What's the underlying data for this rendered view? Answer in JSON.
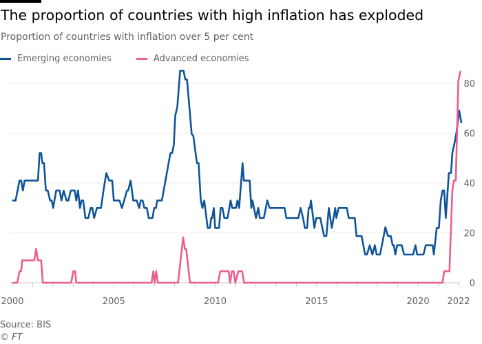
{
  "chart_data": {
    "type": "line",
    "title": "The proportion of countries with high inflation has exploded",
    "subtitle": "Proportion of countries with inflation over 5 per cent",
    "xlabel": "",
    "ylabel": "",
    "xlim": [
      2000,
      2022.2
    ],
    "ylim": [
      0,
      87
    ],
    "grid": true,
    "legend_position": "top-left",
    "x_ticks": [
      2000,
      2005,
      2010,
      2015,
      2020,
      2022
    ],
    "x_tick_labels": [
      "2000",
      "2005",
      "2010",
      "2015",
      "2020",
      "2022"
    ],
    "y_ticks": [
      0,
      20,
      40,
      60,
      80
    ],
    "y_tick_labels": [
      "0",
      "20",
      "40",
      "60",
      "80"
    ],
    "series": [
      {
        "name": "Emerging economies",
        "color": "#0f5499",
        "points": [
          [
            2000.0,
            33
          ],
          [
            2000.16,
            33
          ],
          [
            2000.35,
            41
          ],
          [
            2000.43,
            41
          ],
          [
            2000.52,
            37
          ],
          [
            2000.6,
            41
          ],
          [
            2001.26,
            41
          ],
          [
            2001.34,
            52
          ],
          [
            2001.42,
            52
          ],
          [
            2001.48,
            48
          ],
          [
            2001.56,
            48
          ],
          [
            2001.65,
            37
          ],
          [
            2001.74,
            37
          ],
          [
            2001.86,
            33
          ],
          [
            2001.94,
            33
          ],
          [
            2002.01,
            30
          ],
          [
            2002.16,
            37
          ],
          [
            2002.33,
            37
          ],
          [
            2002.42,
            33
          ],
          [
            2002.53,
            37
          ],
          [
            2002.67,
            33
          ],
          [
            2002.76,
            33
          ],
          [
            2002.88,
            37
          ],
          [
            2003.07,
            37
          ],
          [
            2003.15,
            33
          ],
          [
            2003.24,
            37
          ],
          [
            2003.33,
            30
          ],
          [
            2003.41,
            33
          ],
          [
            2003.49,
            33
          ],
          [
            2003.6,
            26
          ],
          [
            2003.74,
            26
          ],
          [
            2003.86,
            30
          ],
          [
            2003.94,
            30
          ],
          [
            2004.03,
            26
          ],
          [
            2004.17,
            30
          ],
          [
            2004.37,
            30
          ],
          [
            2004.49,
            37
          ],
          [
            2004.63,
            44
          ],
          [
            2004.77,
            41
          ],
          [
            2004.92,
            41
          ],
          [
            2005.0,
            33
          ],
          [
            2005.28,
            33
          ],
          [
            2005.4,
            30
          ],
          [
            2005.51,
            33
          ],
          [
            2005.65,
            37
          ],
          [
            2005.71,
            37
          ],
          [
            2005.83,
            41
          ],
          [
            2005.96,
            33
          ],
          [
            2006.13,
            33
          ],
          [
            2006.25,
            30
          ],
          [
            2006.33,
            33
          ],
          [
            2006.42,
            33
          ],
          [
            2006.51,
            30
          ],
          [
            2006.63,
            30
          ],
          [
            2006.72,
            26
          ],
          [
            2006.91,
            26
          ],
          [
            2006.99,
            30
          ],
          [
            2007.08,
            30
          ],
          [
            2007.14,
            33
          ],
          [
            2007.37,
            33
          ],
          [
            2007.79,
            52
          ],
          [
            2007.88,
            52
          ],
          [
            2007.96,
            55.5
          ],
          [
            2008.03,
            67
          ],
          [
            2008.13,
            70.5
          ],
          [
            2008.27,
            85
          ],
          [
            2008.44,
            85
          ],
          [
            2008.53,
            81.5
          ],
          [
            2008.61,
            81.5
          ],
          [
            2008.84,
            59.6
          ],
          [
            2008.92,
            59
          ],
          [
            2009.1,
            48
          ],
          [
            2009.18,
            48
          ],
          [
            2009.29,
            33
          ],
          [
            2009.37,
            30
          ],
          [
            2009.46,
            33
          ],
          [
            2009.63,
            22
          ],
          [
            2009.74,
            22
          ],
          [
            2009.8,
            26
          ],
          [
            2009.85,
            26
          ],
          [
            2009.93,
            30
          ],
          [
            2010.0,
            22
          ],
          [
            2010.19,
            22
          ],
          [
            2010.27,
            30
          ],
          [
            2010.36,
            30
          ],
          [
            2010.45,
            26
          ],
          [
            2010.61,
            26
          ],
          [
            2010.76,
            33
          ],
          [
            2010.84,
            30
          ],
          [
            2011.02,
            30
          ],
          [
            2011.1,
            33
          ],
          [
            2011.18,
            30
          ],
          [
            2011.35,
            48
          ],
          [
            2011.41,
            41
          ],
          [
            2011.7,
            41
          ],
          [
            2011.78,
            30
          ],
          [
            2011.84,
            33
          ],
          [
            2012.01,
            26
          ],
          [
            2012.12,
            30
          ],
          [
            2012.2,
            26
          ],
          [
            2012.4,
            26
          ],
          [
            2012.57,
            33
          ],
          [
            2012.68,
            30
          ],
          [
            2013.42,
            30
          ],
          [
            2013.51,
            26
          ],
          [
            2014.1,
            26
          ],
          [
            2014.21,
            30
          ],
          [
            2014.33,
            26
          ],
          [
            2014.42,
            22
          ],
          [
            2014.53,
            22
          ],
          [
            2014.61,
            30
          ],
          [
            2014.67,
            30
          ],
          [
            2014.72,
            33
          ],
          [
            2014.89,
            22
          ],
          [
            2014.98,
            26
          ],
          [
            2015.18,
            26
          ],
          [
            2015.37,
            18.7
          ],
          [
            2015.48,
            18.7
          ],
          [
            2015.6,
            30
          ],
          [
            2015.75,
            22
          ],
          [
            2015.92,
            30
          ],
          [
            2015.97,
            26
          ],
          [
            2016.09,
            30
          ],
          [
            2016.49,
            30
          ],
          [
            2016.58,
            26
          ],
          [
            2016.88,
            26
          ],
          [
            2016.97,
            18.7
          ],
          [
            2017.22,
            18.7
          ],
          [
            2017.39,
            11.3
          ],
          [
            2017.48,
            11.3
          ],
          [
            2017.62,
            15
          ],
          [
            2017.75,
            11.3
          ],
          [
            2017.87,
            15
          ],
          [
            2017.96,
            11.3
          ],
          [
            2018.13,
            11.3
          ],
          [
            2018.39,
            22.3
          ],
          [
            2018.52,
            18.7
          ],
          [
            2018.66,
            18.7
          ],
          [
            2018.75,
            15
          ],
          [
            2018.81,
            15
          ],
          [
            2018.88,
            11.3
          ],
          [
            2018.97,
            15
          ],
          [
            2019.2,
            15
          ],
          [
            2019.31,
            11.3
          ],
          [
            2019.76,
            11.3
          ],
          [
            2019.87,
            15
          ],
          [
            2019.96,
            11.3
          ],
          [
            2020.27,
            11.3
          ],
          [
            2020.38,
            15
          ],
          [
            2020.72,
            15
          ],
          [
            2020.78,
            11.3
          ],
          [
            2020.92,
            22
          ],
          [
            2021.03,
            22
          ],
          [
            2021.12,
            33
          ],
          [
            2021.21,
            37
          ],
          [
            2021.29,
            37
          ],
          [
            2021.37,
            26
          ],
          [
            2021.52,
            44
          ],
          [
            2021.63,
            44
          ],
          [
            2021.69,
            52
          ],
          [
            2021.8,
            56
          ],
          [
            2021.89,
            60
          ],
          [
            2022.03,
            69
          ],
          [
            2022.14,
            64
          ]
        ]
      },
      {
        "name": "Advanced economies",
        "color": "#eb5e8d",
        "points": [
          [
            2000.0,
            0
          ],
          [
            2000.24,
            0
          ],
          [
            2000.35,
            4.6
          ],
          [
            2000.43,
            4.6
          ],
          [
            2000.49,
            9
          ],
          [
            2001.08,
            9
          ],
          [
            2001.17,
            13.6
          ],
          [
            2001.26,
            9
          ],
          [
            2001.42,
            9
          ],
          [
            2001.5,
            0
          ],
          [
            2002.9,
            0
          ],
          [
            2003.0,
            4.6
          ],
          [
            2003.09,
            4.6
          ],
          [
            2003.15,
            0
          ],
          [
            2006.86,
            0
          ],
          [
            2006.95,
            4.6
          ],
          [
            2007.01,
            0
          ],
          [
            2007.09,
            4.6
          ],
          [
            2007.17,
            0
          ],
          [
            2008.17,
            0
          ],
          [
            2008.42,
            18.2
          ],
          [
            2008.5,
            13.6
          ],
          [
            2008.57,
            13.6
          ],
          [
            2008.76,
            0
          ],
          [
            2010.14,
            0
          ],
          [
            2010.25,
            4.6
          ],
          [
            2010.66,
            4.6
          ],
          [
            2010.74,
            0
          ],
          [
            2010.82,
            4.6
          ],
          [
            2010.91,
            4.6
          ],
          [
            2010.99,
            0
          ],
          [
            2011.14,
            4.6
          ],
          [
            2011.33,
            4.6
          ],
          [
            2011.42,
            0
          ],
          [
            2021.21,
            0
          ],
          [
            2021.29,
            4.6
          ],
          [
            2021.55,
            4.6
          ],
          [
            2021.69,
            37
          ],
          [
            2021.77,
            41
          ],
          [
            2021.86,
            41
          ],
          [
            2021.99,
            81
          ],
          [
            2022.1,
            85
          ]
        ]
      }
    ]
  },
  "footer": {
    "source": "Source: BIS",
    "credit": "© FT"
  }
}
